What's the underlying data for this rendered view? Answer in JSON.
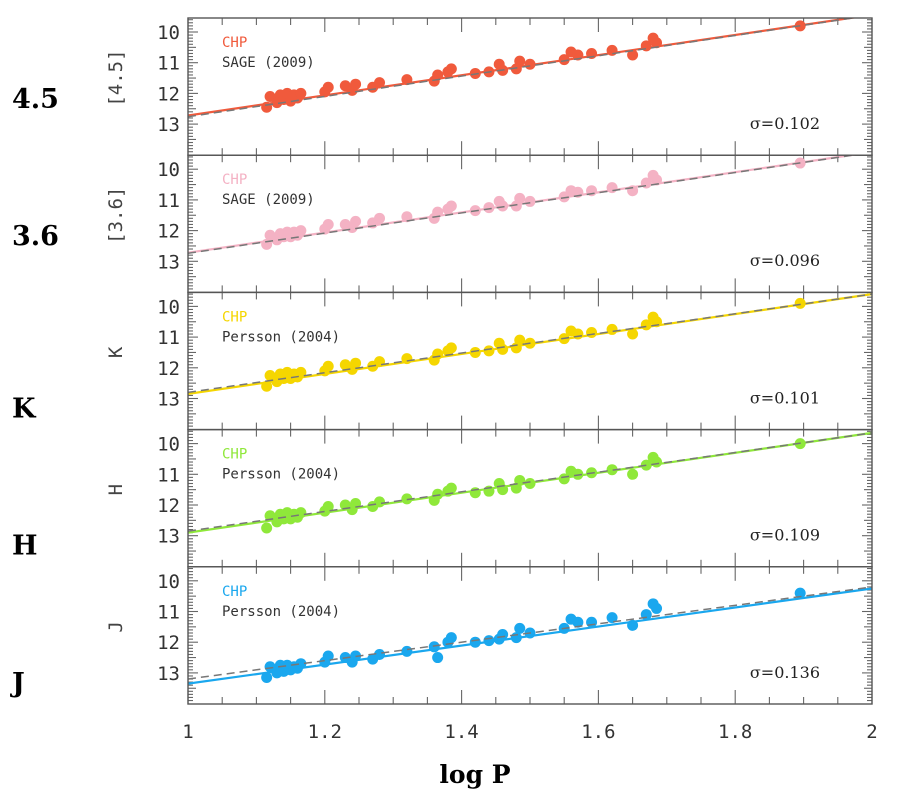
{
  "chart_data": {
    "type": "scatter",
    "title": "",
    "xlabel": "log P",
    "xlim": [
      1,
      2
    ],
    "x_ticks": [
      "1",
      "1.2",
      "1.4",
      "1.6",
      "1.8",
      "2"
    ],
    "y_ticks": [
      "10",
      "11",
      "12",
      "13"
    ],
    "y_inverted": true,
    "ylim": [
      9.55,
      14.0
    ],
    "grid": false,
    "logP": [
      1.115,
      1.12,
      1.13,
      1.135,
      1.14,
      1.145,
      1.15,
      1.155,
      1.16,
      1.165,
      1.2,
      1.205,
      1.23,
      1.24,
      1.245,
      1.27,
      1.28,
      1.32,
      1.36,
      1.365,
      1.38,
      1.385,
      1.42,
      1.44,
      1.455,
      1.46,
      1.48,
      1.485,
      1.5,
      1.55,
      1.56,
      1.57,
      1.59,
      1.62,
      1.65,
      1.67,
      1.68,
      1.685,
      1.895
    ],
    "panels": [
      {
        "name": "4.5",
        "band_label": "4.5",
        "ylabel": "[4.5]",
        "color": "#f05a3c",
        "legend": [
          "CHP",
          "SAGE (2009)"
        ],
        "sigma": "σ=0.102",
        "fit": {
          "intercept": 12.72,
          "slope": -3.28
        },
        "reference": {
          "intercept": 12.76,
          "slope": -3.31
        },
        "mag": [
          12.45,
          12.1,
          12.3,
          12.05,
          12.2,
          12.0,
          12.25,
          12.05,
          12.15,
          12.0,
          11.95,
          11.8,
          11.75,
          11.9,
          11.7,
          11.8,
          11.65,
          11.55,
          11.6,
          11.4,
          11.3,
          11.2,
          11.35,
          11.3,
          11.05,
          11.25,
          11.2,
          10.95,
          11.05,
          10.9,
          10.65,
          10.75,
          10.7,
          10.6,
          10.75,
          10.45,
          10.2,
          10.35,
          9.8
        ]
      },
      {
        "name": "3.6",
        "band_label": "3.6",
        "ylabel": "[3.6]",
        "color": "#f4b2c4",
        "legend": [
          "CHP",
          "SAGE (2009)"
        ],
        "sigma": "σ=0.096",
        "fit": {
          "intercept": 12.72,
          "slope": -3.28
        },
        "reference": {
          "intercept": 12.74,
          "slope": -3.29
        },
        "mag": [
          12.45,
          12.15,
          12.3,
          12.1,
          12.2,
          12.05,
          12.2,
          12.05,
          12.15,
          12.0,
          11.95,
          11.8,
          11.8,
          11.9,
          11.7,
          11.75,
          11.6,
          11.55,
          11.6,
          11.4,
          11.3,
          11.2,
          11.35,
          11.25,
          11.05,
          11.2,
          11.2,
          10.95,
          11.05,
          10.9,
          10.7,
          10.75,
          10.7,
          10.6,
          10.7,
          10.45,
          10.2,
          10.35,
          9.8
        ]
      },
      {
        "name": "K",
        "band_label": "K",
        "ylabel": "K",
        "color": "#f5d600",
        "legend": [
          "CHP",
          "Persson (2004)"
        ],
        "sigma": "σ=0.101",
        "fit": {
          "intercept": 12.85,
          "slope": -3.25
        },
        "reference": {
          "intercept": 12.8,
          "slope": -3.2
        },
        "mag": [
          12.6,
          12.25,
          12.45,
          12.2,
          12.35,
          12.15,
          12.35,
          12.2,
          12.3,
          12.15,
          12.1,
          11.95,
          11.9,
          12.05,
          11.85,
          11.95,
          11.8,
          11.7,
          11.75,
          11.55,
          11.45,
          11.35,
          11.5,
          11.45,
          11.2,
          11.4,
          11.35,
          11.1,
          11.2,
          11.05,
          10.8,
          10.9,
          10.85,
          10.75,
          10.9,
          10.6,
          10.35,
          10.5,
          9.9
        ]
      },
      {
        "name": "H",
        "band_label": "H",
        "ylabel": "H",
        "color": "#8fe83a",
        "legend": [
          "CHP",
          "Persson (2004)"
        ],
        "sigma": "σ=0.109",
        "fit": {
          "intercept": 12.9,
          "slope": -3.25
        },
        "reference": {
          "intercept": 12.85,
          "slope": -3.2
        },
        "mag": [
          12.75,
          12.35,
          12.55,
          12.3,
          12.45,
          12.25,
          12.45,
          12.3,
          12.4,
          12.25,
          12.2,
          12.05,
          12.0,
          12.15,
          11.95,
          12.05,
          11.9,
          11.8,
          11.85,
          11.65,
          11.55,
          11.45,
          11.6,
          11.55,
          11.3,
          11.5,
          11.45,
          11.2,
          11.3,
          11.15,
          10.9,
          11.0,
          10.95,
          10.85,
          11.0,
          10.7,
          10.45,
          10.6,
          10.0
        ]
      },
      {
        "name": "J",
        "band_label": "J",
        "ylabel": "J",
        "color": "#1aa7ee",
        "legend": [
          "CHP",
          "Persson (2004)"
        ],
        "sigma": "σ=0.136",
        "fit": {
          "intercept": 13.35,
          "slope": -3.1
        },
        "reference": {
          "intercept": 13.2,
          "slope": -3.0
        },
        "mag": [
          13.15,
          12.8,
          13.0,
          12.75,
          12.95,
          12.75,
          12.9,
          12.8,
          12.85,
          12.7,
          12.65,
          12.45,
          12.5,
          12.65,
          12.45,
          12.55,
          12.4,
          12.3,
          12.15,
          12.5,
          12.0,
          11.85,
          12.0,
          11.95,
          11.9,
          11.75,
          11.85,
          11.55,
          11.7,
          11.55,
          11.25,
          11.35,
          11.35,
          11.2,
          11.45,
          11.1,
          10.75,
          10.9,
          10.4
        ]
      }
    ]
  }
}
